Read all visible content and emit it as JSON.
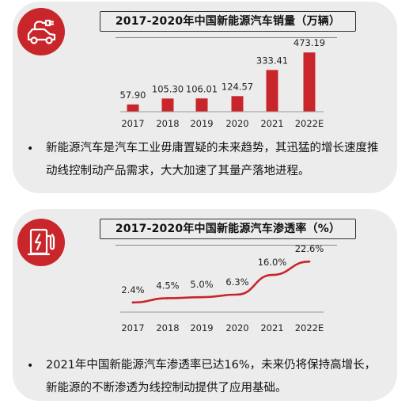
{
  "chart_data": [
    {
      "type": "bar",
      "title": "2017-2020年中国新能源汽车销量（万辆）",
      "categories": [
        "2017",
        "2018",
        "2019",
        "2020",
        "2021",
        "2022E"
      ],
      "values": [
        57.9,
        105.3,
        106.01,
        124.57,
        333.41,
        473.19
      ],
      "value_labels": [
        "57.90",
        "105.30",
        "106.01",
        "124.57",
        "333.41",
        "473.19"
      ],
      "ylim": [
        0,
        500
      ],
      "grid": false,
      "color": "#c8262b",
      "icon": "electric-car-plug-icon",
      "description": "新能源汽车是汽车工业毋庸置疑的未来趋势，其迅猛的增长速度推动线控制动产品需求，大大加速了其量产落地进程。"
    },
    {
      "type": "line",
      "title": "2017-2020年中国新能源汽车渗透率（%）",
      "categories": [
        "2017",
        "2018",
        "2019",
        "2020",
        "2021",
        "2022E"
      ],
      "values": [
        2.4,
        4.5,
        5.0,
        6.3,
        16.0,
        22.6
      ],
      "value_labels": [
        "2.4%",
        "4.5%",
        "5.0%",
        "6.3%",
        "16.0%",
        "22.6%"
      ],
      "ylim": [
        0,
        25
      ],
      "grid": false,
      "color": "#c8262b",
      "icon": "charging-station-icon",
      "description": "2021年中国新能源汽车渗透率已达16%，未来仍将保持高增长，新能源的不断渗透为线控制动提供了应用基础。"
    }
  ],
  "bullet_symbol": "•"
}
